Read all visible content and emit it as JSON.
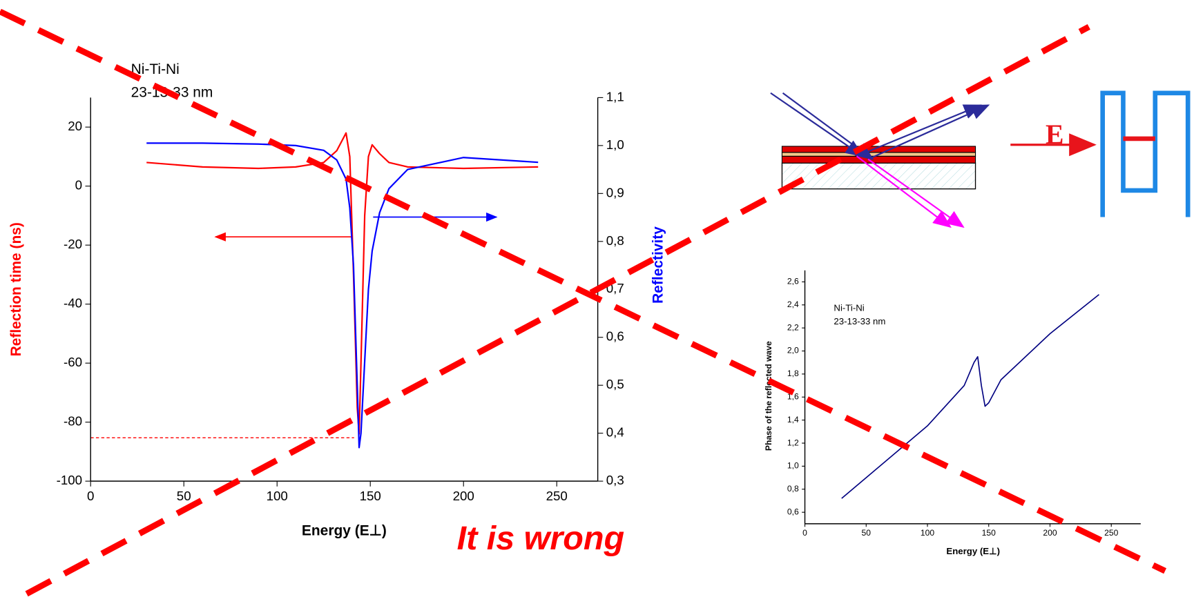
{
  "chart_data": [
    {
      "type": "line",
      "annotations": [
        "Ni-Ti-Ni",
        "23-13-33 nm"
      ],
      "x_label": "Energy (E⊥)",
      "y_label": "Reflection time (ns)",
      "y2_label": "Reflectivity",
      "x": [
        30,
        60,
        90,
        110,
        125,
        132,
        137,
        139,
        141,
        143,
        144,
        145,
        147,
        149,
        151,
        155,
        160,
        170,
        200,
        240
      ],
      "series": [
        {
          "color": "#ff0000",
          "values": [
            8,
            6.5,
            6,
            6.5,
            8,
            12,
            18,
            10,
            -30,
            -75,
            -84,
            -60,
            -10,
            10,
            14,
            11,
            8,
            6.5,
            6,
            6.5
          ]
        },
        {
          "color": "#0000ff",
          "axis": "y2",
          "values": [
            1.005,
            1.005,
            1.003,
            1.0,
            0.99,
            0.97,
            0.93,
            0.87,
            0.75,
            0.5,
            0.37,
            0.4,
            0.55,
            0.7,
            0.78,
            0.86,
            0.91,
            0.95,
            0.975,
            0.965
          ]
        }
      ],
      "xlim": [
        0,
        272
      ],
      "xticks": [
        0,
        50,
        100,
        150,
        200,
        250
      ],
      "ylim": [
        -100,
        30
      ],
      "yticks": [
        -100,
        -80,
        -60,
        -40,
        -20,
        0,
        20
      ],
      "y2lim": [
        0.3,
        1.1
      ],
      "y2ticks": [
        {
          "value": 0.3,
          "label": "0,3"
        },
        {
          "value": 0.4,
          "label": "0,4"
        },
        {
          "value": 0.5,
          "label": "0,5"
        },
        {
          "value": 0.6,
          "label": "0,6"
        },
        {
          "value": 0.7,
          "label": "0,7"
        },
        {
          "value": 0.8,
          "label": "0,8"
        },
        {
          "value": 0.9,
          "label": "0,9"
        },
        {
          "value": 1.0,
          "label": "1,0"
        },
        {
          "value": 1.1,
          "label": "1,1"
        }
      ]
    },
    {
      "type": "line",
      "annotations": [
        "Ni-Ti-Ni",
        "23-13-33 nm"
      ],
      "x_label": "Energy (E⊥)",
      "y_label": "Phase of the reflected wave",
      "x": [
        30,
        50,
        100,
        130,
        138,
        141,
        144,
        147,
        150,
        160,
        200,
        240
      ],
      "series": [
        {
          "color": "#000080",
          "values": [
            0.72,
            0.9,
            1.35,
            1.7,
            1.9,
            1.95,
            1.7,
            1.52,
            1.55,
            1.75,
            2.15,
            2.49
          ]
        }
      ],
      "xlim": [
        0,
        274
      ],
      "xticks": [
        0,
        50,
        100,
        150,
        200,
        250
      ],
      "ylim": [
        0.5,
        2.7
      ],
      "yticks": [
        {
          "value": 0.6,
          "label": "0,6"
        },
        {
          "value": 0.8,
          "label": "0,8"
        },
        {
          "value": 1.0,
          "label": "1,0"
        },
        {
          "value": 1.2,
          "label": "1,2"
        },
        {
          "value": 1.4,
          "label": "1,4"
        },
        {
          "value": 1.6,
          "label": "1,6"
        },
        {
          "value": 1.8,
          "label": "1,8"
        },
        {
          "value": 2.0,
          "label": "2,0"
        },
        {
          "value": 2.2,
          "label": "2,2"
        },
        {
          "value": 2.4,
          "label": "2,4"
        },
        {
          "value": 2.6,
          "label": "2,6"
        }
      ]
    }
  ],
  "diagram": {
    "field_label": "E"
  },
  "verdict": "It is wrong"
}
